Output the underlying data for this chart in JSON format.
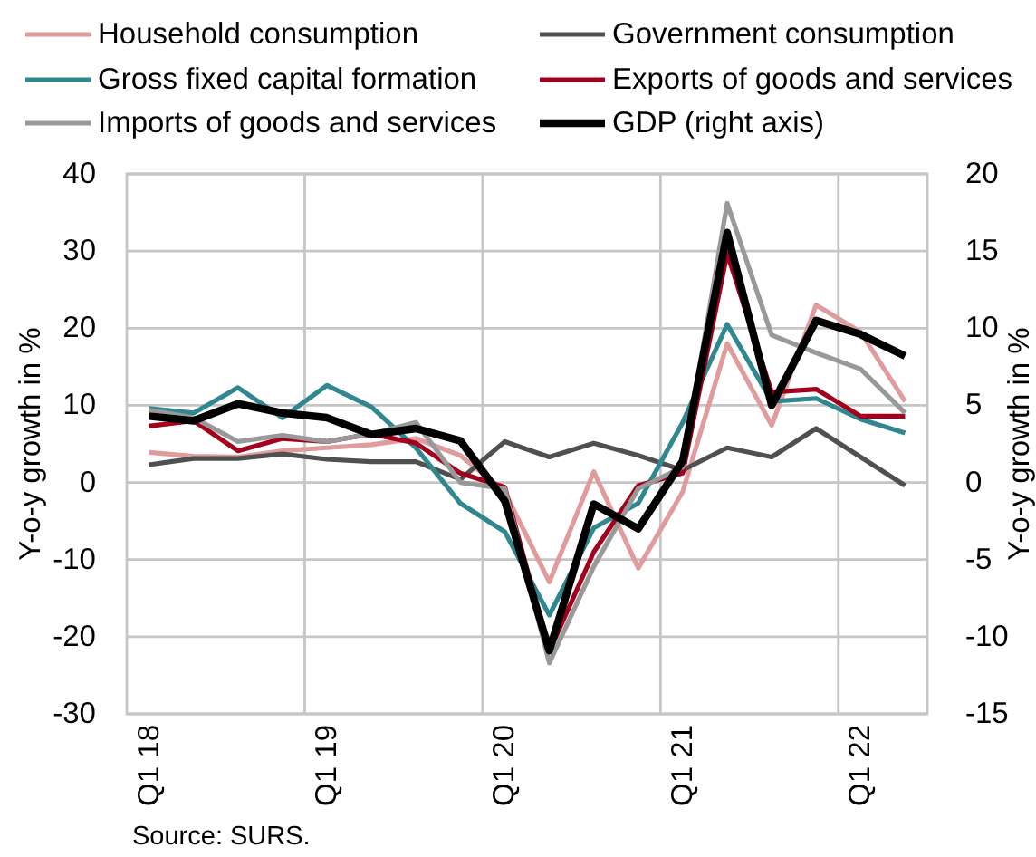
{
  "chart_data": {
    "type": "line",
    "categories": [
      "Q1 18",
      null,
      null,
      null,
      "Q1 19",
      null,
      null,
      null,
      "Q1 20",
      null,
      null,
      null,
      "Q1 21",
      null,
      null,
      null,
      "Q1 22",
      null
    ],
    "series": [
      {
        "name": "Household consumption",
        "color": "#e09c9c",
        "values": [
          3.9,
          3.4,
          3.3,
          4.1,
          4.5,
          4.9,
          5.7,
          3.5,
          -1.2,
          -12.9,
          1.4,
          -11.1,
          -1.2,
          18.0,
          7.4,
          23.0,
          19.5,
          10.5
        ]
      },
      {
        "name": "Government consumption",
        "color": "#505050",
        "values": [
          2.3,
          3.1,
          3.1,
          3.7,
          3.0,
          2.7,
          2.7,
          0.4,
          5.3,
          3.3,
          5.1,
          3.5,
          1.6,
          4.5,
          3.3,
          7.0,
          3.3,
          -0.4
        ]
      },
      {
        "name": "Gross fixed capital formation",
        "color": "#31878f",
        "values": [
          9.6,
          9.0,
          12.3,
          8.4,
          12.6,
          9.8,
          4.5,
          -2.7,
          -6.4,
          -17.2,
          -5.9,
          -2.7,
          7.8,
          20.5,
          10.5,
          10.9,
          8.2,
          6.4
        ]
      },
      {
        "name": "Exports of goods and services",
        "color": "#a3001e",
        "values": [
          7.3,
          8.0,
          4.1,
          5.7,
          5.3,
          6.3,
          5.1,
          1.2,
          -0.6,
          -21.9,
          -9.0,
          -0.4,
          1.2,
          29.7,
          11.7,
          12.1,
          8.6,
          8.6
        ]
      },
      {
        "name": "Imports of goods and services",
        "color": "#999999",
        "values": [
          9.4,
          8.4,
          5.3,
          6.1,
          5.3,
          6.3,
          7.8,
          0.0,
          -0.8,
          -23.4,
          -10.9,
          -0.8,
          2.0,
          36.2,
          19.1,
          16.8,
          14.7,
          9.0
        ]
      },
      {
        "name": "GDP (right axis)",
        "color": "#000000",
        "axis": "y2",
        "values": [
          4.3,
          4.0,
          5.1,
          4.5,
          4.2,
          3.1,
          3.5,
          2.7,
          -1.2,
          -10.9,
          -1.4,
          -3.0,
          1.4,
          16.2,
          5.0,
          10.5,
          9.6,
          8.2
        ]
      }
    ],
    "ylabel": "Y-o-y growth in %",
    "y2label": "Y-o-y growth in %",
    "ylim": [
      -30,
      40
    ],
    "yticks": [
      -30,
      -20,
      -10,
      0,
      10,
      20,
      30,
      40
    ],
    "y2lim": [
      -15,
      20
    ],
    "y2ticks": [
      -15,
      -10,
      -5,
      0,
      5,
      10,
      15,
      20
    ],
    "grid": true,
    "legend": "top",
    "annotations": [
      "Source: SURS."
    ]
  }
}
